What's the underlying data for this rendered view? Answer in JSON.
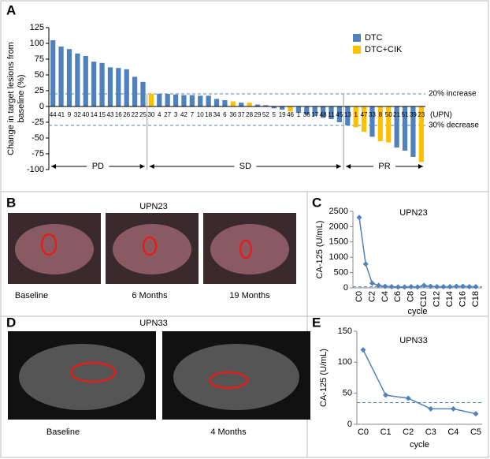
{
  "panel_labels": [
    "A",
    "B",
    "C",
    "D",
    "E"
  ],
  "image_panels": [
    {
      "title": "UPN23",
      "captions": [
        "Baseline",
        "6 Months",
        "19 Months"
      ]
    },
    {
      "title": "UPN33",
      "captions": [
        "Baseline",
        "4 Months"
      ]
    }
  ],
  "chart_data": [
    {
      "type": "bar",
      "y_label": [
        "Change in target lesions from",
        "baseline (%)"
      ],
      "x_label": "(UPN)",
      "categories": [
        "44",
        "41",
        "9",
        "32",
        "40",
        "14",
        "15",
        "43",
        "16",
        "26",
        "22",
        "25",
        "30",
        "4",
        "27",
        "3",
        "42",
        "7",
        "10",
        "18",
        "34",
        "6",
        "36",
        "37",
        "28",
        "29",
        "52",
        "5",
        "19",
        "46",
        "1",
        "36",
        "17",
        "48",
        "11",
        "45",
        "13",
        "1",
        "47",
        "33",
        "8",
        "50",
        "21",
        "51",
        "39",
        "23"
      ],
      "series": [
        {
          "name": "DTC",
          "color": "#4f81bd",
          "values": [
            105,
            95,
            91,
            84,
            80,
            71,
            69,
            62,
            61,
            59,
            47,
            39,
            null,
            20,
            20,
            19,
            18,
            18,
            17,
            17,
            12,
            10,
            null,
            6,
            null,
            3,
            2,
            -3,
            -5,
            null,
            -10,
            -13,
            -15,
            -18,
            -20,
            -25,
            -30,
            null,
            null,
            -48,
            null,
            null,
            -65,
            -70,
            -80,
            null
          ]
        },
        {
          "name": "DTC+CIK",
          "color": "#ffc000",
          "values": [
            null,
            null,
            null,
            null,
            null,
            null,
            null,
            null,
            null,
            null,
            null,
            null,
            20,
            null,
            null,
            null,
            null,
            null,
            null,
            null,
            null,
            null,
            8,
            null,
            6,
            null,
            null,
            null,
            null,
            -8,
            null,
            null,
            null,
            null,
            null,
            null,
            null,
            -33,
            -40,
            null,
            -55,
            -57,
            null,
            null,
            null,
            -88
          ]
        }
      ],
      "ylim": [
        -100,
        125
      ],
      "yticks": [
        -100,
        -75,
        -50,
        -25,
        0,
        25,
        50,
        75,
        100,
        125
      ],
      "reference_lines": [
        {
          "value": 20,
          "label": "20% increase"
        },
        {
          "value": -30,
          "label": "30% decrease"
        }
      ],
      "groups": [
        "PD",
        "SD",
        "PR"
      ]
    },
    {
      "type": "line",
      "title": "UPN23",
      "y_label": "CA-125 (U/mL)",
      "x_label": "cycle",
      "categories": [
        "C0",
        null,
        "C2",
        null,
        "C4",
        null,
        "C6",
        null,
        "C8",
        null,
        "C10",
        null,
        "C12",
        null,
        "C14",
        null,
        "C16",
        null,
        "C18"
      ],
      "values": [
        2300,
        780,
        150,
        80,
        50,
        40,
        30,
        30,
        40,
        30,
        80,
        50,
        40,
        40,
        40,
        50,
        50,
        40,
        40
      ],
      "color": "#4f81bd",
      "ylim": [
        0,
        2500
      ],
      "yticks": [
        0,
        500,
        1000,
        1500,
        2000,
        2500
      ],
      "reference_lines": [
        {
          "value": 35
        }
      ],
      "rotate_x_labels": true
    },
    {
      "type": "line",
      "title": "UPN33",
      "y_label": "CA-125 (U/mL)",
      "x_label": "cycle",
      "categories": [
        "C0",
        "C1",
        "C2",
        "C3",
        "C4",
        "C5"
      ],
      "values": [
        120,
        47,
        42,
        25,
        25,
        17
      ],
      "color": "#4f81bd",
      "ylim": [
        0,
        150
      ],
      "yticks": [
        0,
        50,
        100,
        150
      ],
      "reference_lines": [
        {
          "value": 35
        }
      ],
      "rotate_x_labels": false
    }
  ]
}
